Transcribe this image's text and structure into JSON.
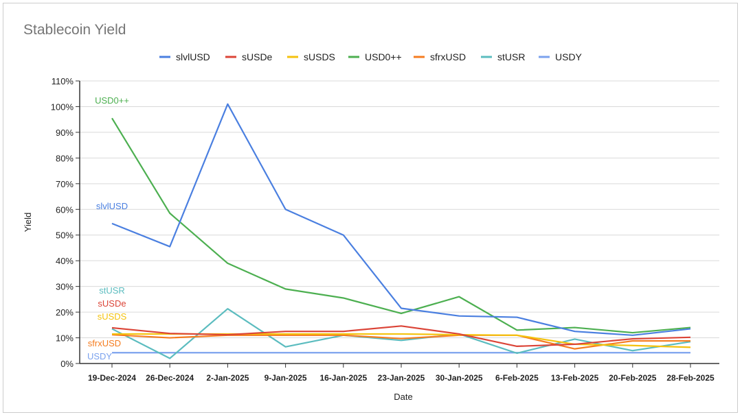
{
  "chart_data": {
    "type": "line",
    "title": "Stablecoin Yield",
    "xlabel": "Date",
    "ylabel": "Yield",
    "ylim": [
      0,
      110
    ],
    "yticks": [
      "0%",
      "10%",
      "20%",
      "30%",
      "40%",
      "50%",
      "60%",
      "70%",
      "80%",
      "90%",
      "100%",
      "110%"
    ],
    "categories": [
      "19-Dec-2024",
      "26-Dec-2024",
      "2-Jan-2025",
      "9-Jan-2025",
      "16-Jan-2025",
      "23-Jan-2025",
      "30-Jan-2025",
      "6-Feb-2025",
      "13-Feb-2025",
      "20-Feb-2025",
      "28-Feb-2025"
    ],
    "legend_position": "top",
    "series": [
      {
        "name": "slvlUSD",
        "color": "#4a7fe0",
        "values": [
          54.5,
          45.5,
          101,
          60,
          50,
          21.5,
          18.5,
          18,
          12.5,
          11,
          13.5
        ]
      },
      {
        "name": "sUSDe",
        "color": "#db4437",
        "values": [
          13.9,
          11.7,
          11.2,
          12.5,
          12.5,
          14.6,
          11.5,
          6.7,
          7.5,
          9.6,
          10.2
        ]
      },
      {
        "name": "sUSDS",
        "color": "#f4c20d",
        "values": [
          11.5,
          11.5,
          11.5,
          11.5,
          11.5,
          11.5,
          11.2,
          11,
          7.5,
          7,
          6.3
        ]
      },
      {
        "name": "USD0++",
        "color": "#4caf50",
        "values": [
          95.5,
          58.5,
          39,
          29,
          25.5,
          19.5,
          26,
          13,
          14,
          12,
          14
        ]
      },
      {
        "name": "sfrxUSD",
        "color": "#f57c1f",
        "values": [
          11.2,
          10,
          11,
          11,
          11,
          9.7,
          11,
          11,
          5.7,
          8.8,
          8.8
        ]
      },
      {
        "name": "stUSR",
        "color": "#5bbcbf",
        "values": [
          13.5,
          2,
          21.3,
          6.5,
          11,
          9,
          11.5,
          4,
          9.5,
          5,
          8.5
        ]
      },
      {
        "name": "USDY",
        "color": "#7ba2ee",
        "values": [
          4.2,
          4.2,
          4.2,
          4.2,
          4.2,
          4.2,
          4.2,
          4.2,
          4.2,
          4.2,
          4.2
        ]
      }
    ],
    "annotations": [
      {
        "series": "USD0++",
        "text": "USD0++"
      },
      {
        "series": "slvlUSD",
        "text": "slvlUSD"
      },
      {
        "series": "stUSR",
        "text": "stUSR"
      },
      {
        "series": "sUSDe",
        "text": "sUSDe"
      },
      {
        "series": "sUSDS",
        "text": "sUSDS"
      },
      {
        "series": "sfrxUSD",
        "text": "sfrxUSD"
      },
      {
        "series": "USDY",
        "text": "USDY"
      }
    ]
  }
}
